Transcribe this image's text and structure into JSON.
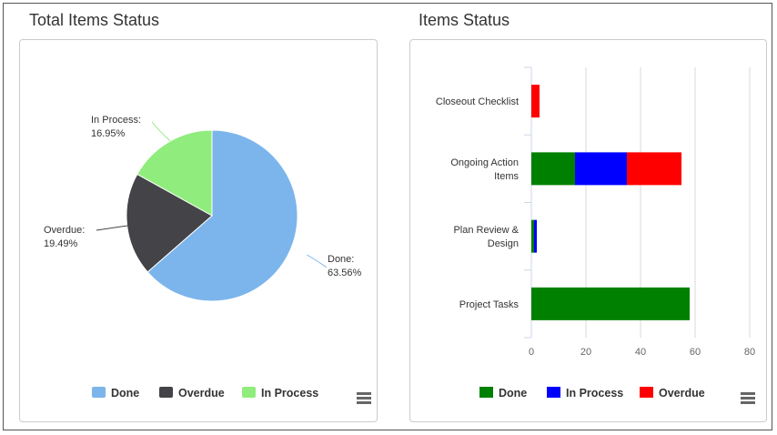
{
  "left_panel": {
    "title": "Total Items Status"
  },
  "right_panel": {
    "title": "Items Status"
  },
  "chart_data": [
    {
      "type": "pie",
      "title": "Total Items Status",
      "slices": [
        {
          "name": "Done",
          "value": 63.56,
          "color": "#7cb5ec",
          "label_name": "Done:",
          "label_value": "63.56%"
        },
        {
          "name": "Overdue",
          "value": 19.49,
          "color": "#434348",
          "label_name": "Overdue:",
          "label_value": "19.49%"
        },
        {
          "name": "In Process",
          "value": 16.95,
          "color": "#90ed7d",
          "label_name": "In Process:",
          "label_value": "16.95%"
        }
      ],
      "legend_position": "bottom"
    },
    {
      "type": "bar",
      "orientation": "horizontal",
      "stacked": true,
      "title": "Items Status",
      "categories": [
        [
          "Closeout Checklist"
        ],
        [
          "Ongoing Action",
          "Items"
        ],
        [
          "Plan Review &",
          "Design"
        ],
        [
          "Project Tasks"
        ]
      ],
      "series": [
        {
          "name": "Done",
          "color": "#008000",
          "values": [
            0,
            16,
            1,
            58
          ]
        },
        {
          "name": "In Process",
          "color": "#0000ff",
          "values": [
            0,
            19,
            1,
            0
          ]
        },
        {
          "name": "Overdue",
          "color": "#ff0000",
          "values": [
            3,
            20,
            0,
            0
          ]
        }
      ],
      "xlim": [
        0,
        80
      ],
      "xticks": [
        "0",
        "20",
        "40",
        "60",
        "80"
      ],
      "grid": true,
      "legend_position": "bottom"
    }
  ]
}
